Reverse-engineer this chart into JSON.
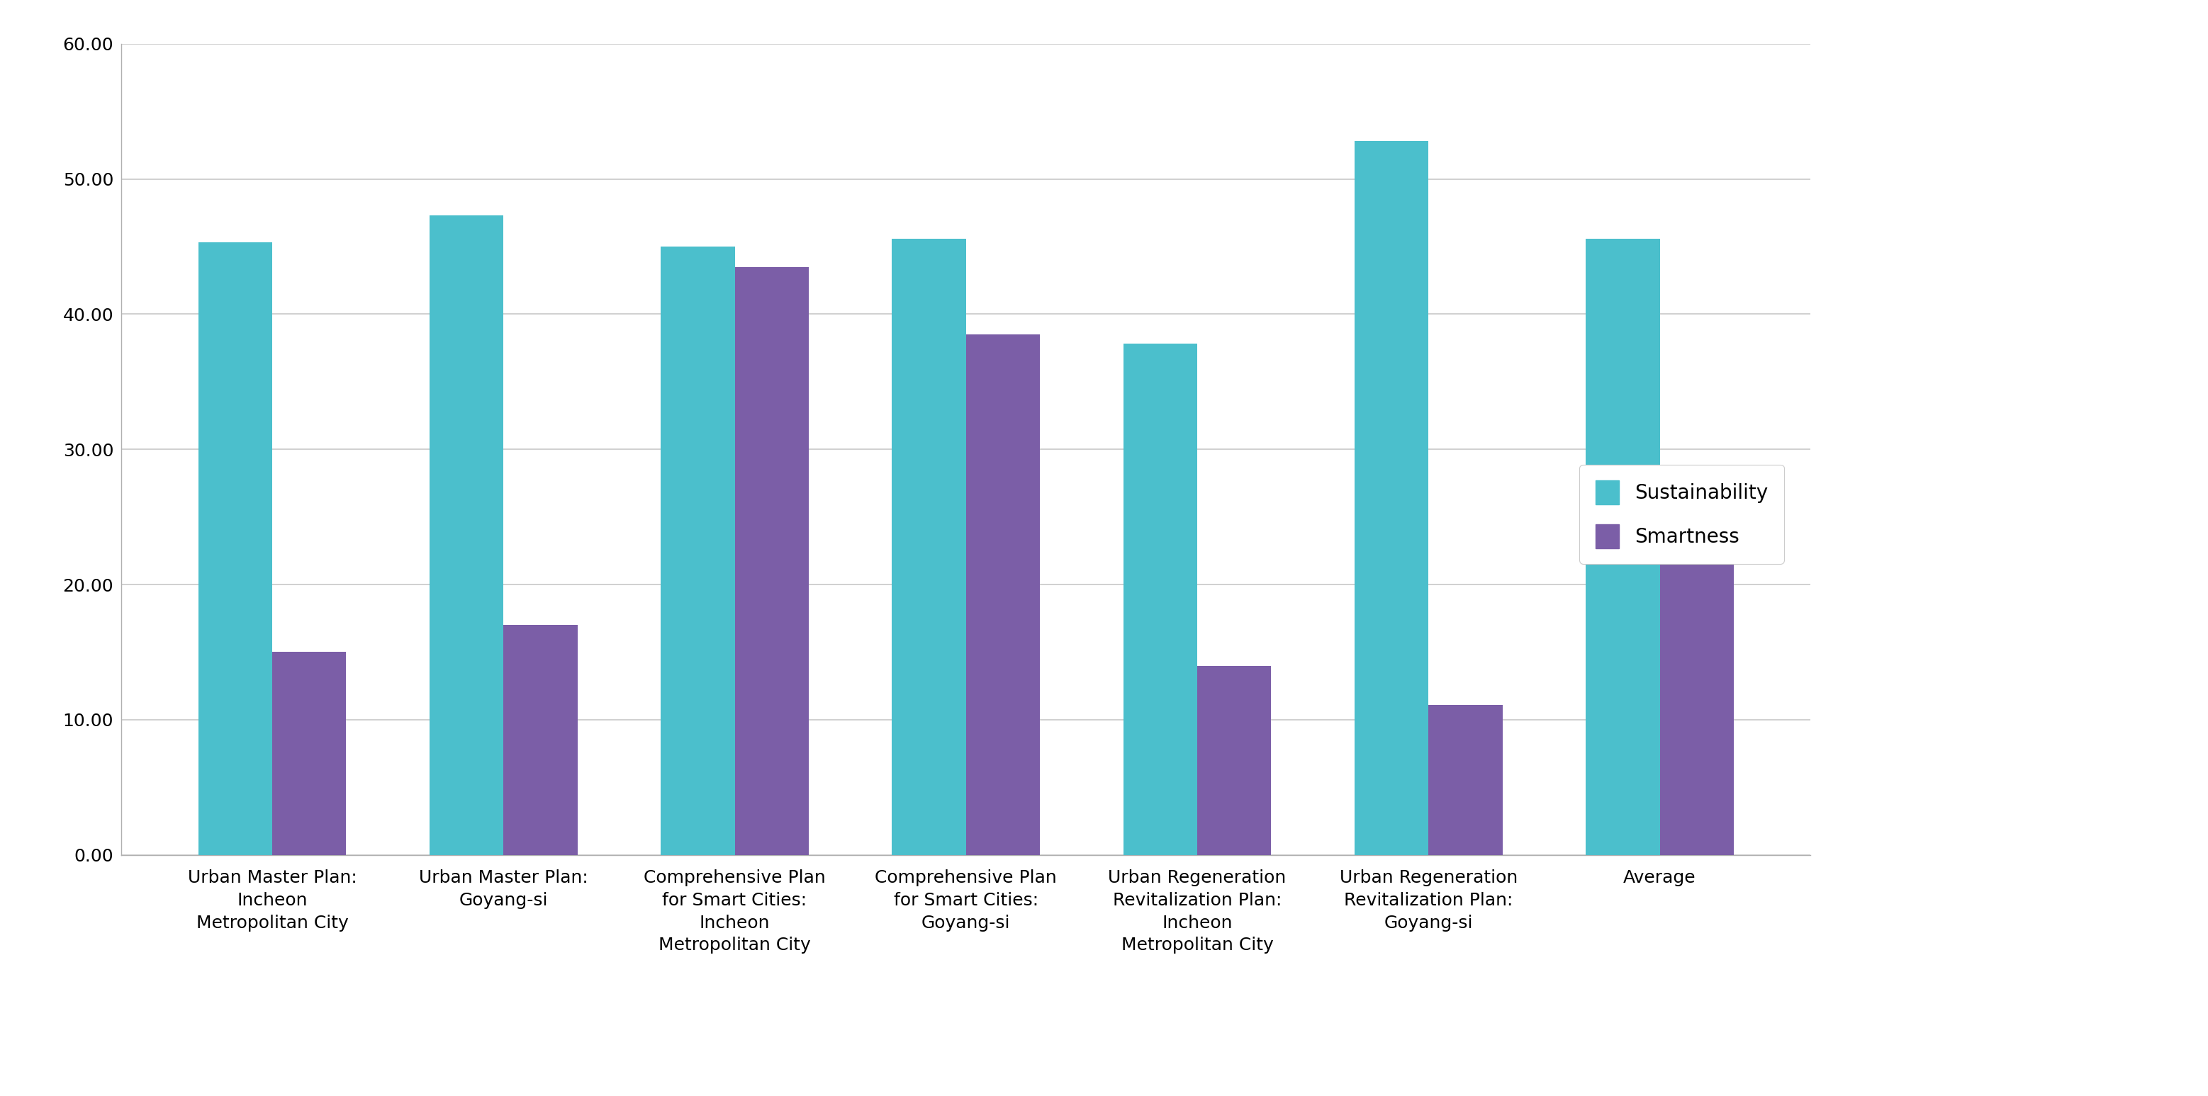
{
  "categories": [
    "Urban Master Plan:\nIncheon\nMetropolitan City",
    "Urban Master Plan:\nGoyang-si",
    "Comprehensive Plan\nfor Smart Cities:\nIncheon\nMetropolitan City",
    "Comprehensive Plan\nfor Smart Cities:\nGoyang-si",
    "Urban Regeneration\nRevitalization Plan:\nIncheon\nMetropolitan City",
    "Urban Regeneration\nRevitalization Plan:\nGoyang-si",
    "Average"
  ],
  "sustainability": [
    45.3,
    47.3,
    45.0,
    45.6,
    37.8,
    52.8,
    45.6
  ],
  "smartness": [
    15.0,
    17.0,
    43.5,
    38.5,
    14.0,
    11.1,
    23.2
  ],
  "sustainability_color": "#4BBFCC",
  "smartness_color": "#7B5EA7",
  "ylim": [
    0,
    60
  ],
  "yticks": [
    0.0,
    10.0,
    20.0,
    30.0,
    40.0,
    50.0,
    60.0
  ],
  "legend_sustainability": "Sustainability",
  "legend_smartness": "Smartness",
  "background_color": "#ffffff",
  "grid_color": "#c8c8c8",
  "tick_label_fontsize": 18,
  "legend_fontsize": 20,
  "bar_width": 0.32,
  "figsize": [
    31.15,
    15.47
  ]
}
